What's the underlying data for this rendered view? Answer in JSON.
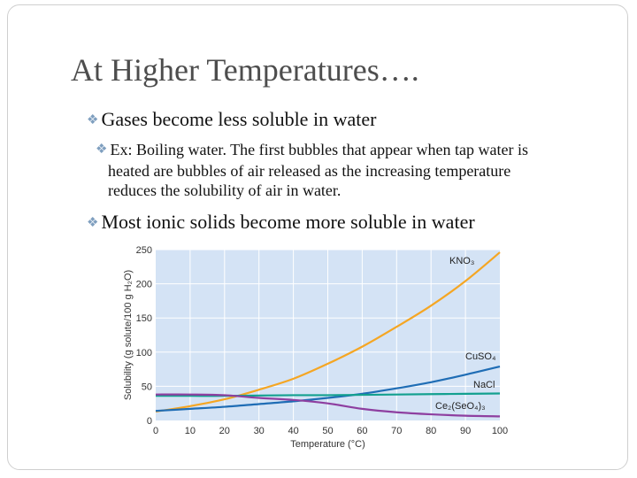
{
  "slide": {
    "title": "At Higher Temperatures….",
    "bullets": [
      "Gases become less soluble in water",
      "Ex: Boiling water. The first bubbles that appear when tap water is",
      "heated are bubbles of air released as the increasing temperature",
      "reduces the solubility of air in water.",
      "Most ionic solids become more soluble in water"
    ]
  },
  "colors": {
    "plot_background": "#d4e3f5",
    "grid": "#ffffff",
    "KNO3": "#f5a623",
    "CuSO4": "#1f6db5",
    "NaCl": "#13a08f",
    "Ce2SeO43": "#8e3fa0"
  },
  "chart_data": {
    "type": "line",
    "xlabel": "Temperature (°C)",
    "ylabel": "Solubility (g solute/100 g H₂O)",
    "xlim": [
      0,
      100
    ],
    "ylim": [
      0,
      250
    ],
    "x_ticks": [
      "0",
      "10",
      "20",
      "30",
      "40",
      "50",
      "60",
      "70",
      "80",
      "90",
      "100"
    ],
    "y_ticks": [
      "0",
      "50",
      "100",
      "150",
      "200",
      "250"
    ],
    "grid": true,
    "series": [
      {
        "name": "KNO₃",
        "x": [
          0,
          10,
          20,
          30,
          40,
          50,
          60,
          70,
          80,
          90,
          100
        ],
        "y": [
          13,
          21,
          31,
          45,
          61,
          83,
          108,
          137,
          168,
          204,
          246
        ]
      },
      {
        "name": "CuSO₄",
        "x": [
          0,
          10,
          20,
          30,
          40,
          50,
          60,
          70,
          80,
          90,
          100
        ],
        "y": [
          14,
          17,
          20,
          24,
          28,
          33,
          39,
          47,
          56,
          67,
          79
        ]
      },
      {
        "name": "NaCl",
        "x": [
          0,
          10,
          20,
          30,
          40,
          50,
          60,
          70,
          80,
          90,
          100
        ],
        "y": [
          36,
          36,
          36,
          36.5,
          37,
          37,
          37.5,
          38,
          38.5,
          39,
          39.5
        ]
      },
      {
        "name": "Ce₂(SeO₄)₃",
        "x": [
          0,
          10,
          20,
          30,
          40,
          50,
          60,
          70,
          80,
          90,
          100
        ],
        "y": [
          38,
          38,
          37,
          33,
          30,
          25,
          17,
          12,
          9,
          7,
          6
        ]
      }
    ]
  }
}
